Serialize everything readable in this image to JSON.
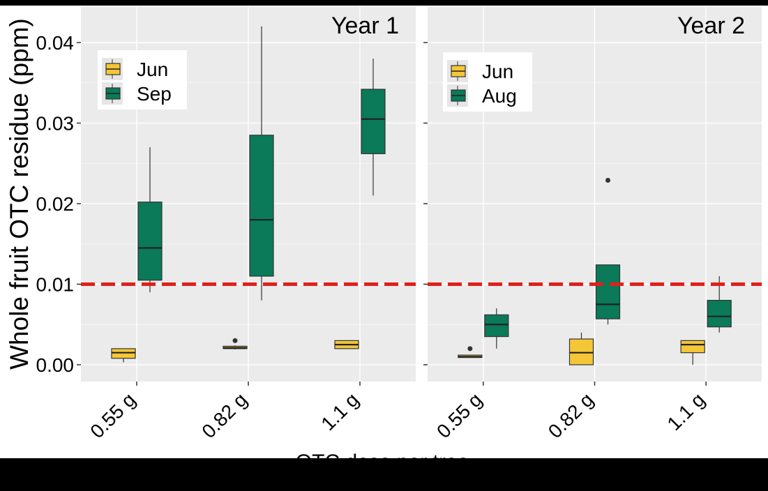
{
  "chart_data": {
    "type": "box",
    "ylabel": "Whole fruit OTC residue (ppm)",
    "xlabel": "OTC dose per tree",
    "ylim": [
      0,
      0.045
    ],
    "y_ticks": [
      0.0,
      0.01,
      0.02,
      0.03,
      0.04
    ],
    "y_tick_labels": [
      "0.00",
      "0.01",
      "0.02",
      "0.03",
      "0.04"
    ],
    "categories": [
      "0.55 g",
      "0.82 g",
      "1.1 g"
    ],
    "threshold": {
      "value": 0.01,
      "color": "#e0201b",
      "style": "dashed"
    },
    "colors": {
      "early": "#f5c637",
      "late": "#0a7a58",
      "panel_bg": "#ebebeb",
      "grid": "#ffffff"
    },
    "panels": [
      {
        "title": "Year 1",
        "legend": [
          "Jun",
          "Sep"
        ],
        "series": [
          {
            "name": "Jun",
            "boxes": [
              {
                "min": 0.0003,
                "q1": 0.0008,
                "median": 0.0015,
                "q3": 0.002,
                "max": 0.002,
                "outliers": []
              },
              {
                "min": 0.0019,
                "q1": 0.002,
                "median": 0.0021,
                "q3": 0.0023,
                "max": 0.0024,
                "outliers": [
                  0.003
                ]
              },
              {
                "min": 0.002,
                "q1": 0.002,
                "median": 0.0025,
                "q3": 0.003,
                "max": 0.003,
                "outliers": []
              }
            ]
          },
          {
            "name": "Sep",
            "boxes": [
              {
                "min": 0.009,
                "q1": 0.0105,
                "median": 0.0145,
                "q3": 0.0202,
                "max": 0.027,
                "outliers": []
              },
              {
                "min": 0.008,
                "q1": 0.011,
                "median": 0.018,
                "q3": 0.0285,
                "max": 0.042,
                "outliers": []
              },
              {
                "min": 0.021,
                "q1": 0.0262,
                "median": 0.0305,
                "q3": 0.0342,
                "max": 0.038,
                "outliers": []
              }
            ]
          }
        ]
      },
      {
        "title": "Year 2",
        "legend": [
          "Jun",
          "Aug"
        ],
        "series": [
          {
            "name": "Jun",
            "boxes": [
              {
                "min": 0.0009,
                "q1": 0.0009,
                "median": 0.001,
                "q3": 0.0012,
                "max": 0.0012,
                "outliers": [
                  0.002
                ]
              },
              {
                "min": 0.0,
                "q1": 0.0,
                "median": 0.0015,
                "q3": 0.0032,
                "max": 0.004,
                "outliers": []
              },
              {
                "min": 0.0,
                "q1": 0.0015,
                "median": 0.0025,
                "q3": 0.003,
                "max": 0.003,
                "outliers": []
              }
            ]
          },
          {
            "name": "Aug",
            "boxes": [
              {
                "min": 0.002,
                "q1": 0.0035,
                "median": 0.005,
                "q3": 0.0062,
                "max": 0.007,
                "outliers": []
              },
              {
                "min": 0.005,
                "q1": 0.0057,
                "median": 0.0075,
                "q3": 0.0124,
                "max": 0.0124,
                "outliers": [
                  0.0229
                ]
              },
              {
                "min": 0.004,
                "q1": 0.0047,
                "median": 0.006,
                "q3": 0.008,
                "max": 0.011,
                "outliers": []
              }
            ]
          }
        ]
      }
    ]
  }
}
